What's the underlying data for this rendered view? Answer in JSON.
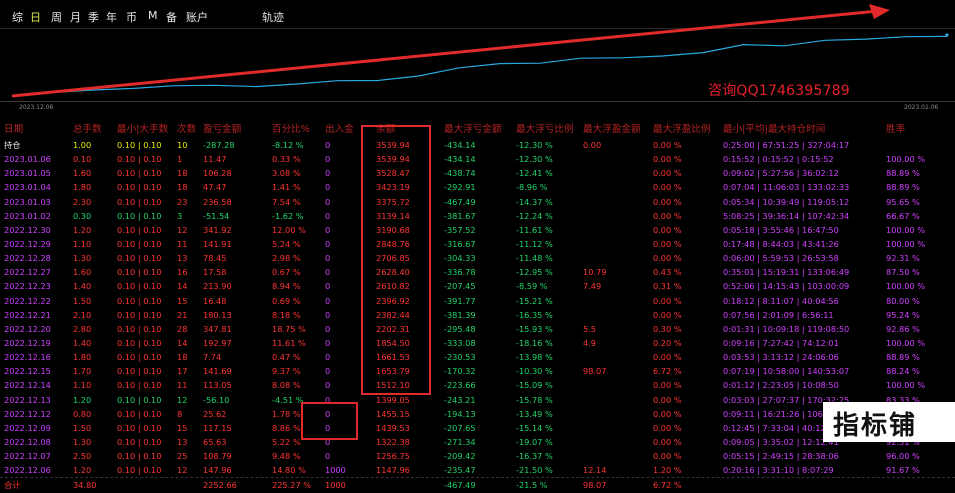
{
  "tabs": [
    {
      "label": "综",
      "active": false
    },
    {
      "label": "日",
      "active": true
    },
    {
      "label": "周",
      "active": false
    },
    {
      "label": "月",
      "active": false
    },
    {
      "label": "季",
      "active": false
    },
    {
      "label": "年",
      "active": false
    },
    {
      "label": "币",
      "active": false
    },
    {
      "label": "M",
      "active": false
    },
    {
      "label": "备",
      "active": false
    },
    {
      "label": "账户",
      "active": false
    }
  ],
  "track_label": "轨迹",
  "chart": {
    "start_date": "2023.12.06",
    "end_date": "2023.01.06",
    "watermark": "咨询QQ1746395789",
    "line_color": "#2aa9e0",
    "arrow_color": "#e12b2b"
  },
  "columns": [
    "日期",
    "总手数",
    "最小|大手数",
    "次数",
    "盈亏金额",
    "百分比%",
    "出入金",
    "余额",
    "最大浮亏金额",
    "最大浮亏比例",
    "最大浮盈金额",
    "最大浮盈比例",
    "最小|平均|最大持仓时间",
    "胜率"
  ],
  "rows": [
    {
      "date": "持仓",
      "lots": "1.00",
      "minmax": "0.10 | 0.10",
      "count": "10",
      "pnl": "-287.28",
      "pct": "-8.12 %",
      "flow": "0",
      "balance": "3539.94",
      "mdd": "-434.14",
      "mddp": "-12.30 %",
      "mpf": "0.00",
      "mpfp": "0.00 %",
      "hold": "0:25:00 | 67:51:25 | 327:04:17",
      "win": ""
    },
    {
      "date": "2023.01.06",
      "lots": "0.10",
      "minmax": "0.10 | 0.10",
      "count": "1",
      "pnl": "11.47",
      "pct": "0.33 %",
      "flow": "0",
      "balance": "3539.94",
      "mdd": "-434.14",
      "mddp": "-12.30 %",
      "mpf": "",
      "mpfp": "0.00 %",
      "hold": "0:15:52 | 0:15:52 | 0:15:52",
      "win": "100.00 %"
    },
    {
      "date": "2023.01.05",
      "lots": "1.60",
      "minmax": "0.10 | 0.10",
      "count": "18",
      "pnl": "106.28",
      "pct": "3.08 %",
      "flow": "0",
      "balance": "3528.47",
      "mdd": "-438.74",
      "mddp": "-12.41 %",
      "mpf": "",
      "mpfp": "0.00 %",
      "hold": "0:09:02 | 5:27:56 | 36:02:12",
      "win": "88.89 %"
    },
    {
      "date": "2023.01.04",
      "lots": "1.80",
      "minmax": "0.10 | 0.10",
      "count": "18",
      "pnl": "47.47",
      "pct": "1.41 %",
      "flow": "0",
      "balance": "3423.19",
      "mdd": "-292.91",
      "mddp": "-8.96 %",
      "mpf": "",
      "mpfp": "0.00 %",
      "hold": "0:07:04 | 11:06:03 | 133:02:33",
      "win": "88.89 %"
    },
    {
      "date": "2023.01.03",
      "lots": "2.30",
      "minmax": "0.10 | 0.10",
      "count": "23",
      "pnl": "236.58",
      "pct": "7.54 %",
      "flow": "0",
      "balance": "3375.72",
      "mdd": "-467.49",
      "mddp": "-14.37 %",
      "mpf": "",
      "mpfp": "0.00 %",
      "hold": "0:05:34 | 10:39:49 | 119:05:12",
      "win": "95.65 %"
    },
    {
      "date": "2023.01.02",
      "lots": "0.30",
      "minmax": "0.10 | 0.10",
      "count": "3",
      "pnl": "-51.54",
      "pct": "-1.62 %",
      "flow": "0",
      "balance": "3139.14",
      "mdd": "-381.67",
      "mddp": "-12.24 %",
      "mpf": "",
      "mpfp": "0.00 %",
      "hold": "5:08:25 | 39:36:14 | 107:42:34",
      "win": "66.67 %"
    },
    {
      "date": "2022.12.30",
      "lots": "1.20",
      "minmax": "0.10 | 0.10",
      "count": "12",
      "pnl": "341.92",
      "pct": "12.00 %",
      "flow": "0",
      "balance": "3190.68",
      "mdd": "-357.52",
      "mddp": "-11.61 %",
      "mpf": "",
      "mpfp": "0.00 %",
      "hold": "0:05:18 | 3:55:46 | 16:47:50",
      "win": "100.00 %"
    },
    {
      "date": "2022.12.29",
      "lots": "1.10",
      "minmax": "0.10 | 0.10",
      "count": "11",
      "pnl": "141.91",
      "pct": "5.24 %",
      "flow": "0",
      "balance": "2848.76",
      "mdd": "-316.67",
      "mddp": "-11.12 %",
      "mpf": "",
      "mpfp": "0.00 %",
      "hold": "0:17:48 | 8:44:03 | 43:41:26",
      "win": "100.00 %"
    },
    {
      "date": "2022.12.28",
      "lots": "1.30",
      "minmax": "0.10 | 0.10",
      "count": "13",
      "pnl": "78.45",
      "pct": "2.98 %",
      "flow": "0",
      "balance": "2706.85",
      "mdd": "-304.33",
      "mddp": "-11.48 %",
      "mpf": "",
      "mpfp": "0.00 %",
      "hold": "0:06:00 | 5:59:53 | 26:53:58",
      "win": "92.31 %"
    },
    {
      "date": "2022.12.27",
      "lots": "1.60",
      "minmax": "0.10 | 0.10",
      "count": "16",
      "pnl": "17.58",
      "pct": "0.67 %",
      "flow": "0",
      "balance": "2628.40",
      "mdd": "-336.78",
      "mddp": "-12.95 %",
      "mpf": "10.79",
      "mpfp": "0.43 %",
      "hold": "0:35:01 | 15:19:31 | 133:06:49",
      "win": "87.50 %"
    },
    {
      "date": "2022.12.23",
      "lots": "1.40",
      "minmax": "0.10 | 0.10",
      "count": "14",
      "pnl": "213.90",
      "pct": "8.94 %",
      "flow": "0",
      "balance": "2610.82",
      "mdd": "-207.45",
      "mddp": "-8.59 %",
      "mpf": "7.49",
      "mpfp": "0.31 %",
      "hold": "0:52:06 | 14:15:43 | 103:00:09",
      "win": "100.00 %"
    },
    {
      "date": "2022.12.22",
      "lots": "1.50",
      "minmax": "0.10 | 0.10",
      "count": "15",
      "pnl": "16.48",
      "pct": "0.69 %",
      "flow": "0",
      "balance": "2396.92",
      "mdd": "-391.77",
      "mddp": "-15.21 %",
      "mpf": "",
      "mpfp": "0.00 %",
      "hold": "0:18:12 | 8:11:07 | 40:04:56",
      "win": "80.00 %"
    },
    {
      "date": "2022.12.21",
      "lots": "2.10",
      "minmax": "0.10 | 0.10",
      "count": "21",
      "pnl": "180.13",
      "pct": "8.18 %",
      "flow": "0",
      "balance": "2382.44",
      "mdd": "-381.39",
      "mddp": "-16.35 %",
      "mpf": "",
      "mpfp": "0.00 %",
      "hold": "0:07:56 | 2:01:09 | 6:56:11",
      "win": "95.24 %"
    },
    {
      "date": "2022.12.20",
      "lots": "2.80",
      "minmax": "0.10 | 0.10",
      "count": "28",
      "pnl": "347.81",
      "pct": "18.75 %",
      "flow": "0",
      "balance": "2202.31",
      "mdd": "-295.48",
      "mddp": "-15.93 %",
      "mpf": "5.5",
      "mpfp": "0.30 %",
      "hold": "0:01:31 | 10:09:18 | 119:08:50",
      "win": "92.86 %"
    },
    {
      "date": "2022.12.19",
      "lots": "1.40",
      "minmax": "0.10 | 0.10",
      "count": "14",
      "pnl": "192.97",
      "pct": "11.61 %",
      "flow": "0",
      "balance": "1854.50",
      "mdd": "-333.08",
      "mddp": "-18.16 %",
      "mpf": "4.9",
      "mpfp": "0.20 %",
      "hold": "0:09:16 | 7:27:42 | 74:12:01",
      "win": "100.00 %"
    },
    {
      "date": "2022.12.16",
      "lots": "1.80",
      "minmax": "0.10 | 0.10",
      "count": "18",
      "pnl": "7.74",
      "pct": "0.47 %",
      "flow": "0",
      "balance": "1661.53",
      "mdd": "-230.53",
      "mddp": "-13.98 %",
      "mpf": "",
      "mpfp": "0.00 %",
      "hold": "0:03:53 | 3:13:12 | 24:06:06",
      "win": "88.89 %"
    },
    {
      "date": "2022.12.15",
      "lots": "1.70",
      "minmax": "0.10 | 0.10",
      "count": "17",
      "pnl": "141.69",
      "pct": "9.37 %",
      "flow": "0",
      "balance": "1653.79",
      "mdd": "-170.32",
      "mddp": "-10.30 %",
      "mpf": "98.07",
      "mpfp": "6.72 %",
      "hold": "0:07:19 | 10:58:00 | 140:53:07",
      "win": "88.24 %"
    },
    {
      "date": "2022.12.14",
      "lots": "1.10",
      "minmax": "0.10 | 0.10",
      "count": "11",
      "pnl": "113.05",
      "pct": "8.08 %",
      "flow": "0",
      "balance": "1512.10",
      "mdd": "-223.66",
      "mddp": "-15.09 %",
      "mpf": "",
      "mpfp": "0.00 %",
      "hold": "0:01:12 | 2:23:05 | 10:08:50",
      "win": "100.00 %"
    },
    {
      "date": "2022.12.13",
      "lots": "1.20",
      "minmax": "0.10 | 0.10",
      "count": "12",
      "pnl": "-56.10",
      "pct": "-4.51 %",
      "flow": "0",
      "balance": "1399.05",
      "mdd": "-243.21",
      "mddp": "-15.78 %",
      "mpf": "",
      "mpfp": "0.00 %",
      "hold": "0:03:03 | 27:07:37 | 170:32:25",
      "win": "83.33 %"
    },
    {
      "date": "2022.12.12",
      "lots": "0.80",
      "minmax": "0.10 | 0.10",
      "count": "8",
      "pnl": "25.62",
      "pct": "1.78 %",
      "flow": "0",
      "balance": "1455.15",
      "mdd": "-194.13",
      "mddp": "-13.49 %",
      "mpf": "",
      "mpfp": "0.00 %",
      "hold": "0:09:11 | 16:21:26 | 106:51:13",
      "win": "87.50 %"
    },
    {
      "date": "2022.12.09",
      "lots": "1.50",
      "minmax": "0.10 | 0.10",
      "count": "15",
      "pnl": "117.15",
      "pct": "8.86 %",
      "flow": "0",
      "balance": "1439.53",
      "mdd": "-207.65",
      "mddp": "-15.14 %",
      "mpf": "",
      "mpfp": "0.00 %",
      "hold": "0:12:45 | 7:33:04 | 40:12:58",
      "win": "93.33 %"
    },
    {
      "date": "2022.12.08",
      "lots": "1.30",
      "minmax": "0.10 | 0.10",
      "count": "13",
      "pnl": "65.63",
      "pct": "5.22 %",
      "flow": "0",
      "balance": "1322.38",
      "mdd": "-271.34",
      "mddp": "-19.07 %",
      "mpf": "",
      "mpfp": "0.00 %",
      "hold": "0:09:05 | 3:35:02 | 12:12:41",
      "win": "92.31 %"
    },
    {
      "date": "2022.12.07",
      "lots": "2.50",
      "minmax": "0.10 | 0.10",
      "count": "25",
      "pnl": "108.79",
      "pct": "9.48 %",
      "flow": "0",
      "balance": "1256.75",
      "mdd": "-209.42",
      "mddp": "-16.37 %",
      "mpf": "",
      "mpfp": "0.00 %",
      "hold": "0:05:15 | 2:49:15 | 28:38:06",
      "win": "96.00 %"
    },
    {
      "date": "2022.12.06",
      "lots": "1.20",
      "minmax": "0.10 | 0.10",
      "count": "12",
      "pnl": "147.96",
      "pct": "14.80 %",
      "flow": "1000",
      "balance": "1147.96",
      "mdd": "-235.47",
      "mddp": "-21.50 %",
      "mpf": "12.14",
      "mpfp": "1.20 %",
      "hold": "0:20:16 | 3:31:10 | 8:07:29",
      "win": "91.67 %"
    }
  ],
  "total": {
    "date": "合计",
    "lots": "34.80",
    "minmax": "",
    "count": "",
    "pnl": "2252.66",
    "pct": "225.27 %",
    "flow": "1000",
    "balance": "",
    "mdd": "-467.49",
    "mddp": "-21.5 %",
    "mpf": "98.07",
    "mpfp": "6.72 %",
    "hold": "",
    "win": ""
  },
  "logo_text": "指标铺"
}
